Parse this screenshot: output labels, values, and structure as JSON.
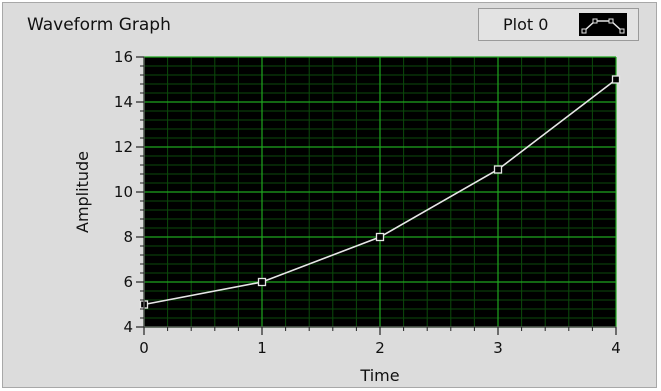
{
  "graph": {
    "title": "Waveform Graph",
    "legend": {
      "plot_label": "Plot 0",
      "plot_icon": "line-with-square-markers-icon"
    }
  },
  "chart_data": {
    "type": "line",
    "xlabel": "Time",
    "ylabel": "Amplitude",
    "xlim": [
      0,
      4
    ],
    "ylim": [
      4,
      16
    ],
    "x_ticks": [
      0,
      1,
      2,
      3,
      4
    ],
    "y_ticks": [
      4,
      6,
      8,
      10,
      12,
      14,
      16
    ],
    "grid": true,
    "series": [
      {
        "x": [
          0,
          1,
          2,
          3,
          4
        ],
        "values": [
          5,
          6,
          8,
          11,
          15
        ],
        "markers": "square"
      }
    ],
    "colors": {
      "plot_bg": "#000000",
      "major_grid": "#1fa51f",
      "minor_grid": "#0b4a0b",
      "line": "#e6e6e6"
    }
  }
}
